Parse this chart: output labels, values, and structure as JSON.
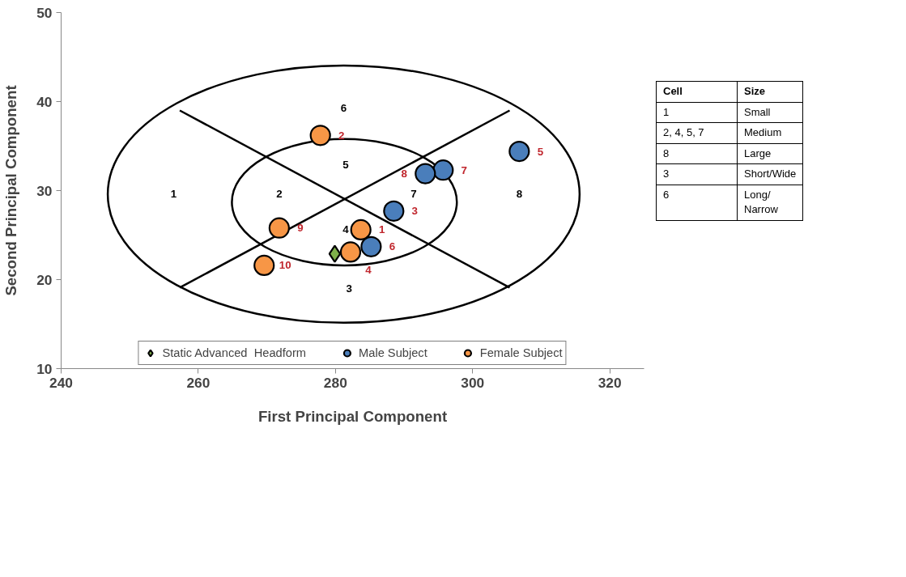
{
  "chart_data": [
    {
      "type": "scatter",
      "xlabel": "First Principal Component",
      "ylabel": "Second Principal Component",
      "xlim": [
        240,
        325
      ],
      "ylim": [
        10,
        50
      ],
      "xticks": [
        240,
        260,
        280,
        300,
        320
      ],
      "yticks": [
        10,
        20,
        30,
        40,
        50
      ],
      "grid": false,
      "legend": "bottom",
      "series": [
        {
          "type": "line",
          "color": "#000000",
          "x": [
            257.3,
            305.4
          ],
          "values": [
            39.0,
            19.1
          ]
        },
        {
          "type": "line",
          "color": "#000000",
          "x": [
            257.3,
            305.4
          ],
          "values": [
            19.1,
            39.0
          ]
        },
        {
          "type": "scatter",
          "name": "Static Advanced  Headform",
          "color": "#7fb04a",
          "marker": "diamond",
          "x": [
            279.9
          ],
          "values": [
            22.9
          ]
        },
        {
          "type": "scatter",
          "name": "Male Subject",
          "color": "#4a7ebb",
          "marker": "circle",
          "x": [
            288.5,
            306.8,
            285.2,
            295.7,
            293.1
          ],
          "values": [
            27.7,
            34.4,
            23.7,
            32.3,
            31.9
          ]
        },
        {
          "type": "scatter",
          "name": "Female Subject",
          "color": "#f79646",
          "marker": "circle",
          "x": [
            283.7,
            277.8,
            282.2,
            271.8,
            269.6
          ],
          "values": [
            25.6,
            36.2,
            23.1,
            25.8,
            21.6
          ]
        }
      ],
      "annotations": [
        {
          "text": "3",
          "x": 288.5,
          "y": 27.7
        },
        {
          "text": "5",
          "x": 306.8,
          "y": 34.4
        },
        {
          "text": "6",
          "x": 285.2,
          "y": 23.7
        },
        {
          "text": "7",
          "x": 295.7,
          "y": 32.3
        },
        {
          "text": "8",
          "x": 293.1,
          "y": 31.9
        },
        {
          "text": "1",
          "x": 283.7,
          "y": 25.6
        },
        {
          "text": "2",
          "x": 277.8,
          "y": 36.2
        },
        {
          "text": "4",
          "x": 282.2,
          "y": 23.1
        },
        {
          "text": "9",
          "x": 271.8,
          "y": 25.8
        },
        {
          "text": "10",
          "x": 269.6,
          "y": 21.6
        },
        "1",
        "2",
        "3",
        "4",
        "5",
        "6",
        "7",
        "8"
      ]
    },
    {
      "type": "other",
      "annotations": [
        "Cell",
        "Size",
        "1",
        "Small",
        "2, 4, 5, 7",
        "Medium",
        "8",
        "Large",
        "3",
        "Short/Wide",
        "6",
        "Long/ Narrow"
      ]
    }
  ]
}
